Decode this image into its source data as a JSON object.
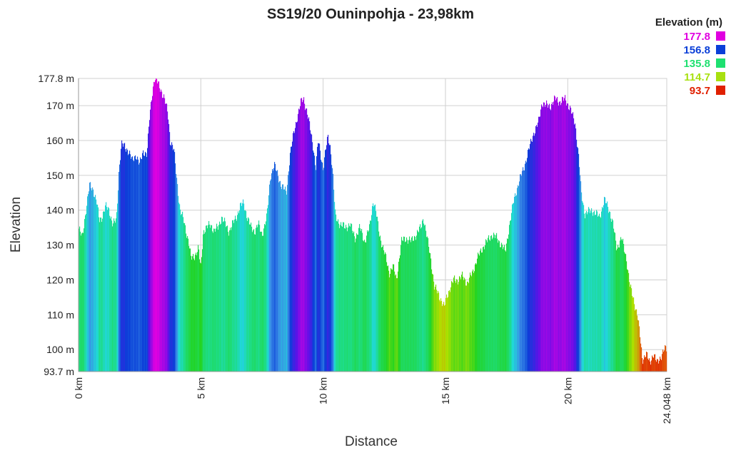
{
  "chart_data": {
    "type": "area",
    "title": "SS19/20 Ouninpohja - 23,98km",
    "xlabel": "Distance",
    "ylabel": "Elevation",
    "xlim": [
      0,
      24.048
    ],
    "ylim": [
      93.7,
      177.8
    ],
    "grid": true,
    "x_ticks": [
      {
        "value": 0,
        "label": "0 km"
      },
      {
        "value": 5,
        "label": "5 km"
      },
      {
        "value": 10,
        "label": "10 km"
      },
      {
        "value": 15,
        "label": "15 km"
      },
      {
        "value": 20,
        "label": "20 km"
      },
      {
        "value": 24.048,
        "label": "24.048 km"
      }
    ],
    "y_ticks": [
      {
        "value": 93.7,
        "label": "93.7 m"
      },
      {
        "value": 100,
        "label": "100 m"
      },
      {
        "value": 110,
        "label": "110 m"
      },
      {
        "value": 120,
        "label": "120 m"
      },
      {
        "value": 130,
        "label": "130 m"
      },
      {
        "value": 140,
        "label": "140 m"
      },
      {
        "value": 150,
        "label": "150 m"
      },
      {
        "value": 160,
        "label": "160 m"
      },
      {
        "value": 170,
        "label": "170 m"
      },
      {
        "value": 177.8,
        "label": "177.8 m"
      }
    ],
    "legend": {
      "title": "Elevation (m)",
      "placement": "top-right",
      "entries": [
        {
          "label": "177.8",
          "value": 177.8,
          "color": "#e000e0"
        },
        {
          "label": "156.8",
          "value": 156.8,
          "color": "#0a3fd8"
        },
        {
          "label": "135.8",
          "value": 135.8,
          "color": "#1ee070"
        },
        {
          "label": "114.7",
          "value": 114.7,
          "color": "#a8e010"
        },
        {
          "label": "93.7",
          "value": 93.7,
          "color": "#e02000"
        }
      ]
    },
    "color_scale": [
      {
        "value": 93.7,
        "color": "#e02000"
      },
      {
        "value": 104,
        "color": "#e07010"
      },
      {
        "value": 114.7,
        "color": "#b0e000"
      },
      {
        "value": 125,
        "color": "#22d422"
      },
      {
        "value": 135.8,
        "color": "#1edc80"
      },
      {
        "value": 142,
        "color": "#20d8d8"
      },
      {
        "value": 149,
        "color": "#3a8de6"
      },
      {
        "value": 156.8,
        "color": "#0a3fd8"
      },
      {
        "value": 166,
        "color": "#6010e8"
      },
      {
        "value": 177.8,
        "color": "#e000e0"
      }
    ],
    "profile": [
      [
        0.0,
        135
      ],
      [
        0.15,
        132
      ],
      [
        0.3,
        140
      ],
      [
        0.45,
        147
      ],
      [
        0.6,
        146
      ],
      [
        0.75,
        142
      ],
      [
        0.85,
        137
      ],
      [
        0.95,
        138
      ],
      [
        1.1,
        141
      ],
      [
        1.25,
        140
      ],
      [
        1.4,
        136
      ],
      [
        1.55,
        137
      ],
      [
        1.65,
        151
      ],
      [
        1.75,
        159
      ],
      [
        1.9,
        158
      ],
      [
        2.05,
        157
      ],
      [
        2.2,
        154
      ],
      [
        2.35,
        156
      ],
      [
        2.5,
        153
      ],
      [
        2.65,
        157
      ],
      [
        2.8,
        156
      ],
      [
        2.9,
        166
      ],
      [
        3.0,
        173
      ],
      [
        3.1,
        177.8
      ],
      [
        3.2,
        177
      ],
      [
        3.35,
        175
      ],
      [
        3.5,
        172
      ],
      [
        3.65,
        168
      ],
      [
        3.75,
        160
      ],
      [
        3.9,
        157
      ],
      [
        4.0,
        150
      ],
      [
        4.15,
        140
      ],
      [
        4.3,
        137
      ],
      [
        4.5,
        131
      ],
      [
        4.6,
        126
      ],
      [
        4.75,
        127
      ],
      [
        4.9,
        129
      ],
      [
        5.0,
        123
      ],
      [
        5.1,
        134
      ],
      [
        5.25,
        135
      ],
      [
        5.4,
        136
      ],
      [
        5.55,
        134
      ],
      [
        5.7,
        135
      ],
      [
        5.85,
        138
      ],
      [
        6.0,
        136
      ],
      [
        6.15,
        134
      ],
      [
        6.3,
        136
      ],
      [
        6.45,
        138
      ],
      [
        6.6,
        141
      ],
      [
        6.75,
        142
      ],
      [
        6.9,
        138
      ],
      [
        7.05,
        135
      ],
      [
        7.2,
        134
      ],
      [
        7.35,
        136
      ],
      [
        7.5,
        133
      ],
      [
        7.7,
        138
      ],
      [
        7.85,
        150
      ],
      [
        8.0,
        153
      ],
      [
        8.15,
        150
      ],
      [
        8.3,
        147
      ],
      [
        8.5,
        145
      ],
      [
        8.65,
        156
      ],
      [
        8.8,
        162
      ],
      [
        8.95,
        167
      ],
      [
        9.1,
        171
      ],
      [
        9.2,
        172
      ],
      [
        9.35,
        168
      ],
      [
        9.5,
        162
      ],
      [
        9.6,
        158
      ],
      [
        9.7,
        152
      ],
      [
        9.8,
        160
      ],
      [
        9.9,
        156
      ],
      [
        10.0,
        152
      ],
      [
        10.1,
        157
      ],
      [
        10.2,
        161
      ],
      [
        10.3,
        158
      ],
      [
        10.4,
        150
      ],
      [
        10.5,
        138
      ],
      [
        10.7,
        136
      ],
      [
        10.9,
        135
      ],
      [
        11.1,
        136
      ],
      [
        11.3,
        132
      ],
      [
        11.5,
        135
      ],
      [
        11.7,
        131
      ],
      [
        11.9,
        135
      ],
      [
        12.05,
        143
      ],
      [
        12.15,
        140
      ],
      [
        12.3,
        133
      ],
      [
        12.5,
        128
      ],
      [
        12.7,
        122
      ],
      [
        12.85,
        124
      ],
      [
        13.0,
        120
      ],
      [
        13.2,
        131
      ],
      [
        13.4,
        132
      ],
      [
        13.6,
        131
      ],
      [
        13.8,
        133
      ],
      [
        14.0,
        135
      ],
      [
        14.1,
        138
      ],
      [
        14.25,
        132
      ],
      [
        14.4,
        126
      ],
      [
        14.55,
        118
      ],
      [
        14.7,
        116
      ],
      [
        14.85,
        114
      ],
      [
        14.95,
        112
      ],
      [
        15.05,
        115
      ],
      [
        15.2,
        118
      ],
      [
        15.35,
        120
      ],
      [
        15.5,
        120
      ],
      [
        15.7,
        121
      ],
      [
        15.9,
        119
      ],
      [
        16.1,
        122
      ],
      [
        16.3,
        126
      ],
      [
        16.5,
        129
      ],
      [
        16.7,
        131
      ],
      [
        16.9,
        133
      ],
      [
        17.1,
        132
      ],
      [
        17.3,
        130
      ],
      [
        17.45,
        128
      ],
      [
        17.6,
        135
      ],
      [
        17.8,
        143
      ],
      [
        18.0,
        148
      ],
      [
        18.2,
        152
      ],
      [
        18.4,
        157
      ],
      [
        18.6,
        162
      ],
      [
        18.8,
        165
      ],
      [
        18.95,
        171
      ],
      [
        19.1,
        170
      ],
      [
        19.3,
        170
      ],
      [
        19.5,
        172
      ],
      [
        19.7,
        171
      ],
      [
        19.9,
        172
      ],
      [
        20.1,
        169
      ],
      [
        20.3,
        165
      ],
      [
        20.45,
        155
      ],
      [
        20.55,
        145
      ],
      [
        20.7,
        139
      ],
      [
        21.0,
        140
      ],
      [
        21.3,
        138
      ],
      [
        21.5,
        143
      ],
      [
        21.7,
        140
      ],
      [
        21.85,
        136
      ],
      [
        22.0,
        129
      ],
      [
        22.2,
        132
      ],
      [
        22.4,
        126
      ],
      [
        22.55,
        118
      ],
      [
        22.7,
        114
      ],
      [
        22.85,
        110
      ],
      [
        22.95,
        104
      ],
      [
        23.05,
        97
      ],
      [
        23.2,
        99
      ],
      [
        23.35,
        96
      ],
      [
        23.5,
        99
      ],
      [
        23.65,
        96
      ],
      [
        23.8,
        98
      ],
      [
        23.95,
        100
      ],
      [
        24.048,
        100
      ]
    ]
  }
}
